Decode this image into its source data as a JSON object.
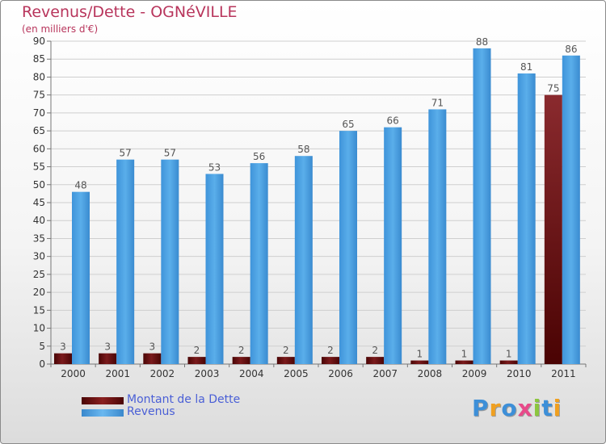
{
  "title": "Revenus/Dette - OGNéVILLE",
  "subtitle": "(en milliers d'€)",
  "legend": [
    {
      "label": "Montant de la Dette",
      "color": "#6b0f10"
    },
    {
      "label": "Revenus",
      "color": "#4a9ee0"
    }
  ],
  "logo": {
    "text": "Proxiti",
    "letters": [
      {
        "ch": "P",
        "color": "#3d8fd8"
      },
      {
        "ch": "r",
        "color": "#f0a020"
      },
      {
        "ch": "o",
        "color": "#3d8fd8"
      },
      {
        "ch": "x",
        "color": "#e84a8a"
      },
      {
        "ch": "i",
        "color": "#8cc63f"
      },
      {
        "ch": "t",
        "color": "#3d8fd8"
      },
      {
        "ch": "i",
        "color": "#f0a020"
      }
    ]
  },
  "chart_data": {
    "type": "bar",
    "categories": [
      "2000",
      "2001",
      "2002",
      "2003",
      "2004",
      "2005",
      "2006",
      "2007",
      "2008",
      "2009",
      "2010",
      "2011"
    ],
    "series": [
      {
        "name": "Montant de la Dette",
        "color": "#6b0f10",
        "values": [
          3,
          3,
          3,
          2,
          2,
          2,
          2,
          2,
          1,
          1,
          1,
          75
        ]
      },
      {
        "name": "Revenus",
        "color": "#4a9ee0",
        "values": [
          48,
          57,
          57,
          53,
          56,
          58,
          65,
          66,
          71,
          88,
          81,
          86
        ]
      }
    ],
    "ylim": [
      0,
      90
    ],
    "yticks": [
      "0",
      "5",
      "10",
      "15",
      "20",
      "25",
      "30",
      "35",
      "40",
      "45",
      "50",
      "55",
      "60",
      "65",
      "70",
      "75",
      "80",
      "85",
      "90"
    ],
    "grid": true,
    "legend_position": "bottom-left"
  }
}
